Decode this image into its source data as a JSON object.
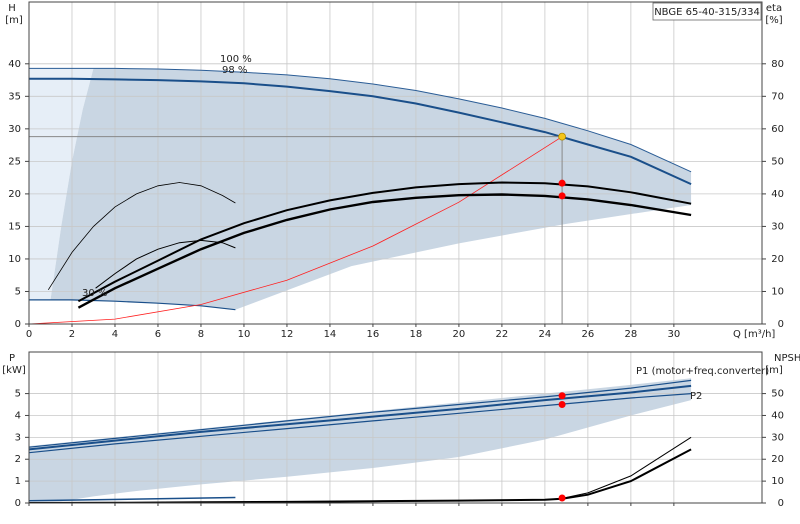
{
  "chart_data": [
    {
      "type": "line",
      "title": "NBGE 65-40-315/334",
      "ylabel": "H",
      "yunit": "[m]",
      "y2label": "eta",
      "y2unit": "[%]",
      "xlabel": "Q [m³/h]",
      "xlim": [
        0,
        34.1
      ],
      "ylim": [
        0,
        49.5
      ],
      "y2lim": [
        0,
        99
      ],
      "xticks": [
        0,
        2,
        4,
        6,
        8,
        10,
        12,
        14,
        16,
        18,
        20,
        22,
        24,
        26,
        28,
        30
      ],
      "yticks": [
        0,
        5,
        10,
        15,
        20,
        25,
        30,
        35,
        40
      ],
      "y2ticks": [
        0,
        10,
        20,
        30,
        40,
        50,
        60,
        70,
        80
      ],
      "grid": true,
      "areas": [
        {
          "color": "#e6eef7",
          "x": [
            0,
            3,
            2.5,
            2,
            1.5,
            1,
            0
          ],
          "values": [
            39.3,
            39.3,
            33,
            25,
            15,
            3.7,
            3.7
          ]
        },
        {
          "color": "#c9d6e3",
          "x": [
            3,
            6,
            8,
            10,
            12,
            14,
            16,
            18,
            20,
            22,
            24,
            26,
            28,
            30.8,
            30.8,
            25,
            20,
            15,
            9.6,
            8,
            6,
            4,
            2,
            1,
            1.5,
            2,
            2.5
          ],
          "values": [
            39.3,
            39.2,
            39.0,
            38.7,
            38.3,
            37.7,
            36.9,
            35.9,
            34.6,
            33.2,
            31.6,
            29.7,
            27.6,
            23.4,
            18.3,
            15.4,
            12.4,
            8.9,
            2.2,
            2.8,
            3.2,
            3.5,
            3.6,
            3.7,
            15,
            25,
            33
          ]
        }
      ],
      "series": [
        {
          "label": "100 %",
          "color": "#2b5d96",
          "width": 1,
          "x": [
            0,
            2,
            4,
            6,
            8,
            10,
            12,
            14,
            16,
            18,
            20,
            22,
            24,
            26,
            28,
            30.8
          ],
          "values": [
            39.3,
            39.3,
            39.3,
            39.2,
            39.0,
            38.7,
            38.3,
            37.7,
            36.9,
            35.9,
            34.6,
            33.2,
            31.6,
            29.7,
            27.6,
            23.4
          ]
        },
        {
          "label": "98 %",
          "color": "#1a4f8a",
          "width": 2,
          "x": [
            0,
            2,
            4,
            6,
            8,
            10,
            12,
            14,
            16,
            18,
            20,
            22,
            24,
            26,
            28,
            30.8
          ],
          "values": [
            37.7,
            37.7,
            37.6,
            37.5,
            37.3,
            37.0,
            36.5,
            35.8,
            35.0,
            33.9,
            32.5,
            31.0,
            29.5,
            27.6,
            25.7,
            21.5
          ]
        },
        {
          "label": "30 %",
          "color": "#1a4f8a",
          "width": 1.2,
          "x": [
            0,
            2,
            4,
            6,
            8,
            9.6
          ],
          "values": [
            3.7,
            3.7,
            3.5,
            3.2,
            2.8,
            2.2
          ]
        },
        {
          "color": "#ff2020",
          "width": 0.8,
          "x": [
            0,
            4,
            8,
            12,
            16,
            20,
            24.8
          ],
          "values": [
            0,
            0.75,
            3.0,
            6.74,
            11.99,
            18.73,
            28.8
          ]
        },
        {
          "axis": "y2",
          "color": "#000000",
          "width": 2,
          "x": [
            2.3,
            4,
            6,
            8,
            10,
            12,
            14,
            16,
            18,
            20,
            22,
            24,
            26,
            28,
            30.8
          ],
          "values": [
            7,
            13,
            19.5,
            26,
            31,
            35,
            38,
            40.3,
            42,
            43,
            43.5,
            43.3,
            42.3,
            40.5,
            37
          ]
        },
        {
          "axis": "y2",
          "color": "#000000",
          "width": 2.4,
          "x": [
            2.3,
            4,
            6,
            8,
            10,
            12,
            14,
            16,
            18,
            20,
            22,
            24,
            26,
            28,
            30.8
          ],
          "values": [
            5,
            11,
            17,
            23,
            28,
            32,
            35.2,
            37.5,
            38.8,
            39.6,
            39.8,
            39.4,
            38.3,
            36.6,
            33.5
          ]
        },
        {
          "axis": "y2",
          "color": "#000000",
          "width": 0.8,
          "x": [
            0.9,
            2,
            3,
            4,
            5,
            6,
            7,
            8,
            9,
            9.6
          ],
          "values": [
            10.5,
            22,
            30,
            36,
            40,
            42.5,
            43.5,
            42.5,
            39.5,
            37.2
          ]
        },
        {
          "axis": "y2",
          "color": "#000000",
          "width": 1,
          "x": [
            3.1,
            4,
            5,
            6,
            7,
            8,
            9,
            9.6
          ],
          "values": [
            11,
            15.5,
            20,
            23,
            25,
            25.7,
            25,
            23.4
          ]
        }
      ],
      "points": [
        {
          "x": 24.8,
          "y": 28.8,
          "color": "#f5c518",
          "guide": true
        },
        {
          "axis": "y2",
          "x": 24.8,
          "y": 43.3,
          "color": "#ff0000"
        },
        {
          "axis": "y2",
          "x": 24.8,
          "y": 39.4,
          "color": "#ff0000"
        }
      ]
    },
    {
      "type": "line",
      "ylabel": "P",
      "yunit": "[kW]",
      "y2label": "NPSH",
      "y2unit": "[m]",
      "xlim": [
        0,
        34.1
      ],
      "ylim": [
        0,
        6.9
      ],
      "y2lim": [
        0,
        69
      ],
      "xticks": [
        0,
        2,
        4,
        6,
        8,
        10,
        12,
        14,
        16,
        18,
        20,
        22,
        24,
        26,
        28,
        30
      ],
      "yticks": [
        0,
        1,
        2,
        3,
        4,
        5
      ],
      "y2ticks": [
        0,
        10,
        20,
        30,
        40,
        50
      ],
      "grid": true,
      "areas": [
        {
          "color": "#c9d6e3",
          "x": [
            0,
            4,
            8,
            12,
            16,
            20,
            24,
            28,
            30.8,
            30.8,
            28,
            24,
            20,
            16,
            12,
            8,
            5,
            3,
            2,
            1.5,
            0
          ],
          "values": [
            2.6,
            3.0,
            3.4,
            3.8,
            4.2,
            4.6,
            5.0,
            5.4,
            5.7,
            4.7,
            4.0,
            2.9,
            2.1,
            1.6,
            1.2,
            0.85,
            0.55,
            0.3,
            0.15,
            0.08,
            0.08
          ]
        }
      ],
      "series": [
        {
          "label": "P1 (motor+freq.converter)",
          "color": "#1a4f8a",
          "width": 1.2,
          "x": [
            0,
            4,
            8,
            12,
            16,
            20,
            24,
            28,
            30.8
          ],
          "values": [
            2.55,
            2.95,
            3.35,
            3.75,
            4.15,
            4.5,
            4.85,
            5.25,
            5.6
          ]
        },
        {
          "color": "#1a4f8a",
          "width": 2,
          "x": [
            0,
            4,
            8,
            12,
            16,
            20,
            24,
            28,
            30.8
          ],
          "values": [
            2.45,
            2.85,
            3.25,
            3.6,
            3.95,
            4.3,
            4.7,
            5.05,
            5.35
          ]
        },
        {
          "label": "P2",
          "color": "#1a4f8a",
          "width": 1.2,
          "x": [
            0,
            4,
            8,
            12,
            16,
            20,
            24,
            28,
            30.8
          ],
          "values": [
            2.3,
            2.7,
            3.05,
            3.4,
            3.75,
            4.1,
            4.45,
            4.8,
            5.0
          ]
        },
        {
          "color": "#1a4f8a",
          "width": 1.5,
          "x": [
            0,
            9.6
          ],
          "values": [
            0.1,
            0.25
          ]
        },
        {
          "axis": "y2",
          "color": "#000000",
          "width": 1,
          "x": [
            0,
            4,
            8,
            12,
            16,
            20,
            24,
            24.8,
            26,
            28,
            30.8
          ],
          "values": [
            0,
            0.1,
            0.3,
            0.5,
            0.8,
            1.1,
            1.5,
            2.1,
            4.6,
            12.4,
            30
          ]
        },
        {
          "axis": "y2",
          "color": "#000000",
          "width": 2,
          "x": [
            0,
            4,
            8,
            12,
            16,
            20,
            24,
            24.8,
            26,
            28,
            30.8
          ],
          "values": [
            0,
            0.1,
            0.3,
            0.5,
            0.8,
            1.1,
            1.5,
            1.9,
            3.8,
            10,
            24.5
          ]
        }
      ],
      "points": [
        {
          "x": 24.8,
          "y": 4.9,
          "color": "#ff0000"
        },
        {
          "x": 24.8,
          "y": 4.5,
          "color": "#ff0000"
        },
        {
          "axis": "y2",
          "x": 24.8,
          "y": 2.3,
          "color": "#ff0000"
        }
      ]
    }
  ]
}
